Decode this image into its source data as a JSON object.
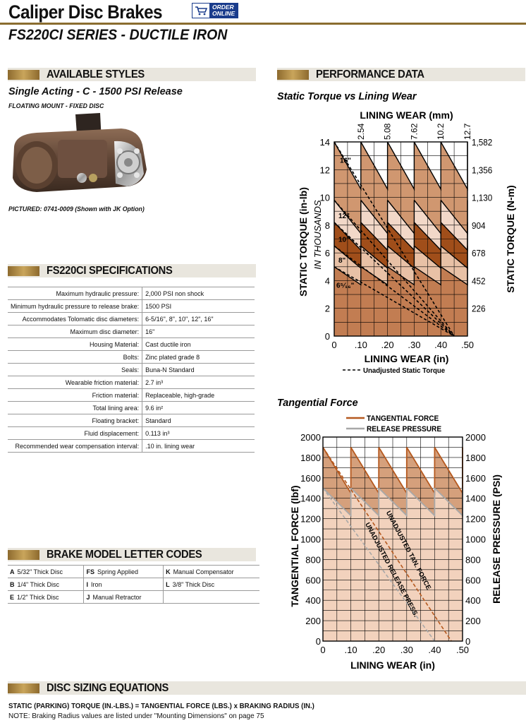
{
  "header": {
    "title": "Caliper Disc Brakes",
    "order_line1": "ORDER",
    "order_line2": "ONLINE",
    "series": "FS220CI SERIES - DUCTILE IRON"
  },
  "styles": {
    "heading": "AVAILABLE STYLES",
    "subtitle": "Single Acting -  C - 1500 PSI Release",
    "mount": "FLOATING MOUNT - FIXED DISC",
    "pictured": "PICTURED: 0741-0009 (Shown with JK Option)"
  },
  "specs": {
    "heading": "FS220CI SPECIFICATIONS",
    "rows": [
      {
        "label": "Maximum hydraulic pressure:",
        "value": "2,000 PSI non shock"
      },
      {
        "label": "Minimum hydraulic pressure to release brake:",
        "value": "1500 PSI"
      },
      {
        "label": "Accommodates Tolomatic disc diameters:",
        "value": "6-5/16\", 8\", 10\", 12\", 16\""
      },
      {
        "label": "Maximum disc diameter:",
        "value": "16\""
      },
      {
        "label": "Housing Material:",
        "value": "Cast ductile iron"
      },
      {
        "label": "Bolts:",
        "value": "Zinc plated grade 8"
      },
      {
        "label": "Seals:",
        "value": "Buna-N Standard"
      },
      {
        "label": "Wearable friction material:",
        "value": "2.7 in³"
      },
      {
        "label": "Friction material:",
        "value": "Replaceable, high-grade"
      },
      {
        "label": "Total lining area:",
        "value": "9.6 in²"
      },
      {
        "label": "Floating bracket:",
        "value": "Standard"
      },
      {
        "label": "Fluid displacement:",
        "value": "0.113 in³"
      },
      {
        "label": "Recommended wear compensation interval:",
        "value": ".10 in. lining wear"
      }
    ]
  },
  "codes": {
    "heading": "BRAKE MODEL LETTER CODES",
    "rows": [
      [
        {
          "code": "A",
          "desc": "5/32\" Thick Disc"
        },
        {
          "code": "FS",
          "desc": "Spring Applied"
        },
        {
          "code": "K",
          "desc": "Manual Compensator"
        }
      ],
      [
        {
          "code": "B",
          "desc": "1/4\" Thick Disc"
        },
        {
          "code": "I",
          "desc": "Iron"
        },
        {
          "code": "L",
          "desc": "3/8\" Thick Disc"
        }
      ],
      [
        {
          "code": "E",
          "desc": "1/2\" Thick Disc"
        },
        {
          "code": "J",
          "desc": "Manual Retractor"
        },
        {
          "code": "",
          "desc": ""
        }
      ]
    ]
  },
  "performance": {
    "heading": "PERFORMANCE DATA"
  },
  "equations": {
    "heading": "DISC SIZING EQUATIONS",
    "static": "STATIC (PARKING) TORQUE (IN.-LBS.) = TANGENTIAL FORCE (LBS.) x BRAKING RADIUS (IN.)",
    "note": "NOTE: Braking Radius values are listed under \"Mounting Dimensions\" on page 75"
  },
  "chart_data": [
    {
      "type": "area",
      "title": "Static Torque vs Lining Wear",
      "xlabel": "LINING WEAR (in)",
      "x2label": "LINING WEAR (mm)",
      "ylabel": "STATIC TORQUE (in-lb)",
      "ylabel_sub": "IN THOUSANDS",
      "y2label": "STATIC TORQUE (N-m)",
      "xlim": [
        0,
        0.5
      ],
      "ylim": [
        0,
        14
      ],
      "x_ticks": [
        0,
        0.1,
        0.2,
        0.3,
        0.4,
        0.5
      ],
      "x_tick_labels": [
        "0",
        ".10",
        ".20",
        ".30",
        ".40",
        ".50"
      ],
      "x2_tick_labels": [
        "2.54",
        "5.08",
        "7.62",
        "10.2",
        "12.7"
      ],
      "y_ticks": [
        0,
        2,
        4,
        6,
        8,
        10,
        12,
        14
      ],
      "y2_tick_labels": [
        "1,582",
        "1,356",
        "1,130",
        "904",
        "678",
        "452",
        "226"
      ],
      "grid": true,
      "legend": "bottom",
      "legend_entries": [
        "Unadjusted Static Torque"
      ],
      "series": [
        {
          "name": "16\"",
          "start": 14.0,
          "end": 10.6,
          "color": "#d09770"
        },
        {
          "name": "12\"",
          "start": 9.8,
          "end": 7.4,
          "color": "#f2d8c8"
        },
        {
          "name": "10\"",
          "start": 8.2,
          "end": 6.2,
          "color": "#a04e1a"
        },
        {
          "name": "8\"",
          "start": 6.5,
          "end": 4.9,
          "color": "#e8c1a6"
        },
        {
          "name": "6⁵⁄₁₆\"",
          "start": 5.0,
          "end": 3.7,
          "color": "#c6875e"
        }
      ],
      "adjust_interval": 0.1,
      "unadjusted_end": [
        0.45,
        0
      ]
    },
    {
      "type": "area",
      "title": "Tangential Force",
      "xlabel": "LINING WEAR (in)",
      "ylabel": "TANGENTIAL FORCE (lbf)",
      "y2label": "RELEASE PRESSURE (PSI)",
      "xlim": [
        0,
        0.5
      ],
      "ylim": [
        0,
        2000
      ],
      "x_ticks": [
        0,
        0.1,
        0.2,
        0.3,
        0.4,
        0.5
      ],
      "x_tick_labels": [
        "0",
        ".10",
        ".20",
        ".30",
        ".40",
        ".50"
      ],
      "y_ticks": [
        0,
        200,
        400,
        600,
        800,
        1000,
        1200,
        1400,
        1600,
        1800,
        2000
      ],
      "y2_ticks": [
        0,
        200,
        400,
        600,
        800,
        1000,
        1200,
        1400,
        1600,
        1800,
        2000
      ],
      "grid": true,
      "legend": "top",
      "series": [
        {
          "name": "TANGENTIAL FORCE",
          "start": 1900,
          "end": 1450,
          "color": "#b5591f"
        },
        {
          "name": "RELEASE PRESSURE",
          "start": 1500,
          "end": 1230,
          "color": "#a8a8a8"
        }
      ],
      "annotations": [
        "UNADJUSTED TAN. FORCE",
        "UNADJUSTED RELEASE PRESS."
      ],
      "adjust_interval": 0.1
    }
  ]
}
